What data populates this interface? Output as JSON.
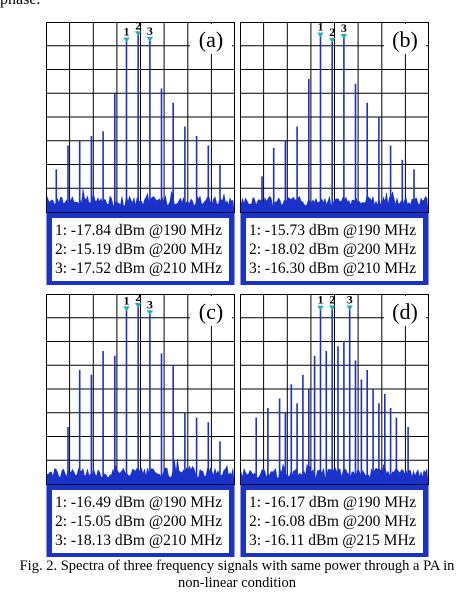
{
  "top_fragment": "phase.",
  "caption": {
    "line1": "Fig. 2.   Spectra of three frequency signals with same power through a PA in",
    "line2": "non-linear condition"
  },
  "colors": {
    "trace": "#1a32c8",
    "marker": "#19b3b3",
    "grid": "#000000",
    "legend_bg": "#ffffff"
  },
  "chart_data": [
    {
      "type": "bar",
      "panel_label": "(a)",
      "markers": [
        {
          "label": "1",
          "x": 190,
          "y": -17.84
        },
        {
          "label": "2",
          "x": 200,
          "y": -15.19
        },
        {
          "label": "3",
          "x": 210,
          "y": -17.52
        }
      ],
      "readouts": [
        "1: -17.84 dBm @190 MHz",
        "2: -15.19 dBm @200 MHz",
        "3: -17.52 dBm @210 MHz"
      ],
      "x": [
        130,
        140,
        150,
        160,
        170,
        180,
        190,
        200,
        210,
        220,
        230,
        240,
        250,
        260,
        270
      ],
      "values": [
        -72,
        -62,
        -60,
        -58,
        -56,
        -40,
        -17.84,
        -15.19,
        -17.52,
        -38,
        -44,
        -54,
        -58,
        -62,
        -70
      ],
      "xlim": [
        122,
        282
      ],
      "ylim": [
        -90,
        -10
      ],
      "grid": true
    },
    {
      "type": "bar",
      "panel_label": "(b)",
      "markers": [
        {
          "label": "1",
          "x": 190,
          "y": -15.73
        },
        {
          "label": "2",
          "x": 200,
          "y": -18.02
        },
        {
          "label": "3",
          "x": 210,
          "y": -16.3
        }
      ],
      "readouts": [
        "1: -15.73 dBm @190 MHz",
        "2: -18.02 dBm @200 MHz",
        "3: -16.30 dBm @210 MHz"
      ],
      "x": [
        140,
        150,
        160,
        170,
        180,
        190,
        200,
        210,
        220,
        230,
        240,
        250,
        260,
        270
      ],
      "values": [
        -75,
        -63,
        -60,
        -54,
        -34,
        -15.73,
        -18.02,
        -16.3,
        -36,
        -44,
        -50,
        -62,
        -68,
        -72
      ],
      "xlim": [
        122,
        282
      ],
      "ylim": [
        -90,
        -10
      ],
      "grid": true
    },
    {
      "type": "bar",
      "panel_label": "(c)",
      "markers": [
        {
          "label": "1",
          "x": 190,
          "y": -16.49
        },
        {
          "label": "2",
          "x": 200,
          "y": -15.05
        },
        {
          "label": "3",
          "x": 210,
          "y": -18.13
        }
      ],
      "readouts": [
        "1: -16.49 dBm @190 MHz",
        "2: -15.05 dBm @200 MHz",
        "3: -18.13 dBm @210 MHz"
      ],
      "x": [
        140,
        150,
        160,
        170,
        180,
        190,
        200,
        210,
        220,
        230,
        240,
        250,
        260,
        270
      ],
      "values": [
        -66,
        -42,
        -44,
        -34,
        -36,
        -16.49,
        -15.05,
        -18.13,
        -35,
        -40,
        -60,
        -62,
        -64,
        -72
      ],
      "xlim": [
        122,
        282
      ],
      "ylim": [
        -90,
        -10
      ],
      "grid": true
    },
    {
      "type": "bar",
      "panel_label": "(d)",
      "markers": [
        {
          "label": "1",
          "x": 190,
          "y": -16.17
        },
        {
          "label": "2",
          "x": 200,
          "y": -16.08
        },
        {
          "label": "3",
          "x": 215,
          "y": -16.11
        }
      ],
      "readouts": [
        "1: -16.17 dBm @190 MHz",
        "2: -16.08 dBm @200 MHz",
        "3: -16.11 dBm @215 MHz"
      ],
      "x": [
        135,
        145,
        155,
        160,
        165,
        170,
        175,
        180,
        185,
        190,
        195,
        200,
        205,
        210,
        215,
        220,
        225,
        230,
        235,
        240,
        245,
        250,
        255,
        265
      ],
      "values": [
        -62,
        -58,
        -54,
        -60,
        -48,
        -56,
        -44,
        -50,
        -36,
        -16.17,
        -34,
        -16.08,
        -32,
        -30,
        -16.11,
        -38,
        -46,
        -42,
        -50,
        -56,
        -52,
        -58,
        -62,
        -66
      ],
      "xlim": [
        122,
        282
      ],
      "ylim": [
        -90,
        -10
      ],
      "grid": true
    }
  ]
}
